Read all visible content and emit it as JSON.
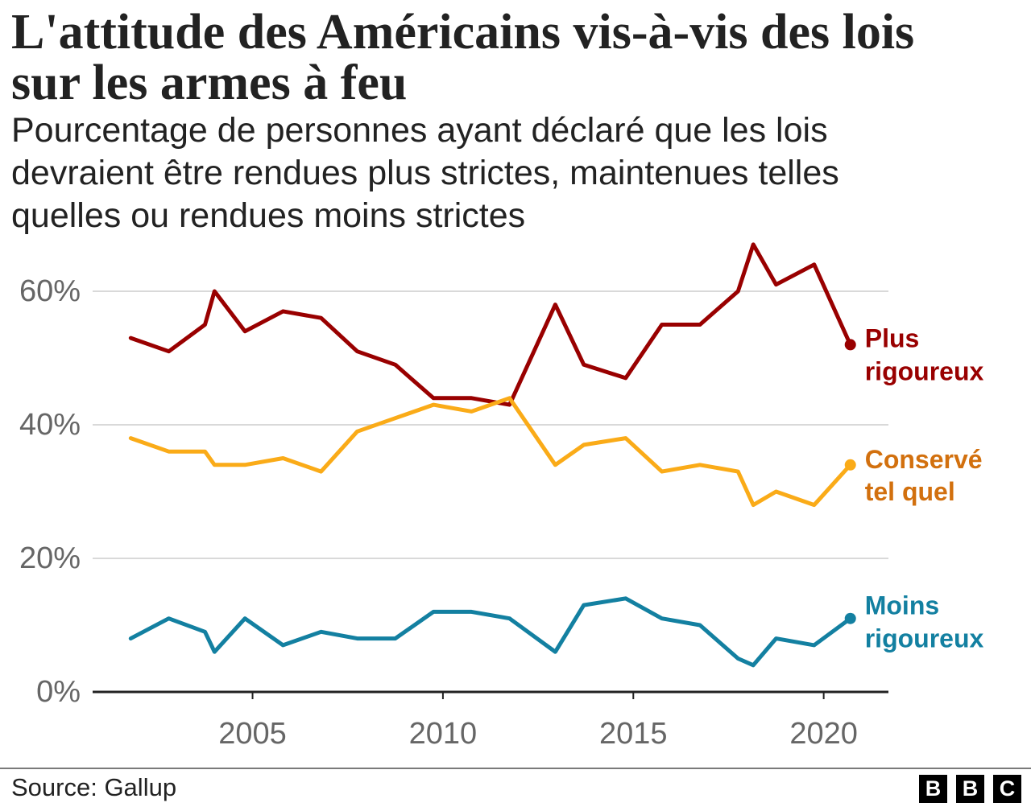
{
  "chart_data": {
    "type": "line",
    "title_lines": [
      "L'attitude des Américains vis-à-vis des lois",
      "sur les armes à feu"
    ],
    "subtitle_lines": [
      "Pourcentage de personnes ayant déclaré que les lois",
      "devraient être rendues plus strictes, maintenues telles",
      "quelles ou rendues moins strictes"
    ],
    "x": [
      2001.8,
      2002.8,
      2003.75,
      2004.0,
      2004.8,
      2005.8,
      2006.8,
      2007.75,
      2008.75,
      2009.75,
      2010.75,
      2011.75,
      2012.95,
      2013.7,
      2014.8,
      2015.75,
      2016.75,
      2017.75,
      2018.15,
      2018.75,
      2019.75,
      2020.7
    ],
    "xlim": [
      2000.8,
      2021.7
    ],
    "ylim": [
      0,
      68
    ],
    "x_ticks": [
      2005,
      2010,
      2015,
      2020
    ],
    "x_tick_labels": [
      "2005",
      "2010",
      "2015",
      "2020"
    ],
    "y_ticks": [
      0,
      20,
      40,
      60
    ],
    "y_tick_labels": [
      "0%",
      "20%",
      "40%",
      "60%"
    ],
    "grid": true,
    "legend": "right",
    "series": [
      {
        "label_lines": [
          "Plus",
          "rigoureux"
        ],
        "color": "#990000",
        "label_color": "#990000",
        "values": [
          53,
          51,
          55,
          60,
          54,
          57,
          56,
          51,
          49,
          44,
          44,
          43,
          58,
          49,
          47,
          55,
          55,
          60,
          67,
          61,
          64,
          52
        ]
      },
      {
        "label_lines": [
          "Conservé",
          "tel quel"
        ],
        "color": "#FAAB18",
        "label_color": "#D2700E",
        "values": [
          38,
          36,
          36,
          34,
          34,
          35,
          33,
          39,
          41,
          43,
          42,
          44,
          34,
          37,
          38,
          33,
          34,
          33,
          28,
          30,
          28,
          34
        ]
      },
      {
        "label_lines": [
          "Moins",
          "rigoureux"
        ],
        "color": "#1380A1",
        "label_color": "#1380A1",
        "values": [
          8,
          11,
          9,
          6,
          11,
          7,
          9,
          8,
          8,
          12,
          12,
          11,
          6,
          13,
          14,
          11,
          10,
          5,
          4,
          8,
          7,
          11
        ]
      }
    ]
  },
  "footer": {
    "source": "Source: Gallup",
    "logo_letters": [
      "B",
      "B",
      "C"
    ]
  }
}
